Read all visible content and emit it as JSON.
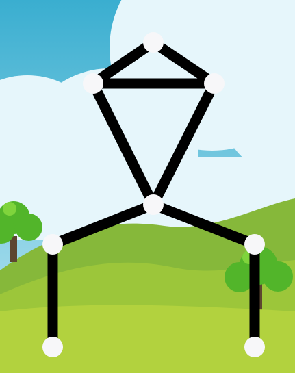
{
  "puzzle": {
    "background": {
      "sky_top": "#3aaed0",
      "sky_bottom": "#bfe8f3",
      "cloud": "#e6f6fb",
      "hill_far": "#86b83a",
      "hill_mid": "#9cc63a",
      "hill_near": "#b2d23e",
      "tree_leaf": "#52b52a",
      "tree_leaf_light": "#7fd43c",
      "tree_trunk": "#5c4630"
    },
    "line_color": "#000000",
    "node_color": "#f7f7f9",
    "nodes": [
      {
        "id": "top-peak"
      },
      {
        "id": "upper-left"
      },
      {
        "id": "upper-right"
      },
      {
        "id": "center-joint"
      },
      {
        "id": "left-shoulder"
      },
      {
        "id": "right-shoulder"
      },
      {
        "id": "left-foot"
      },
      {
        "id": "right-foot"
      }
    ],
    "edges": [
      {
        "from": "top-peak",
        "to": "upper-left"
      },
      {
        "from": "top-peak",
        "to": "upper-right"
      },
      {
        "from": "upper-left",
        "to": "upper-right"
      },
      {
        "from": "upper-left",
        "to": "center-joint"
      },
      {
        "from": "upper-right",
        "to": "center-joint"
      },
      {
        "from": "center-joint",
        "to": "left-shoulder"
      },
      {
        "from": "center-joint",
        "to": "right-shoulder"
      },
      {
        "from": "left-shoulder",
        "to": "left-foot"
      },
      {
        "from": "right-shoulder",
        "to": "right-foot"
      }
    ]
  }
}
